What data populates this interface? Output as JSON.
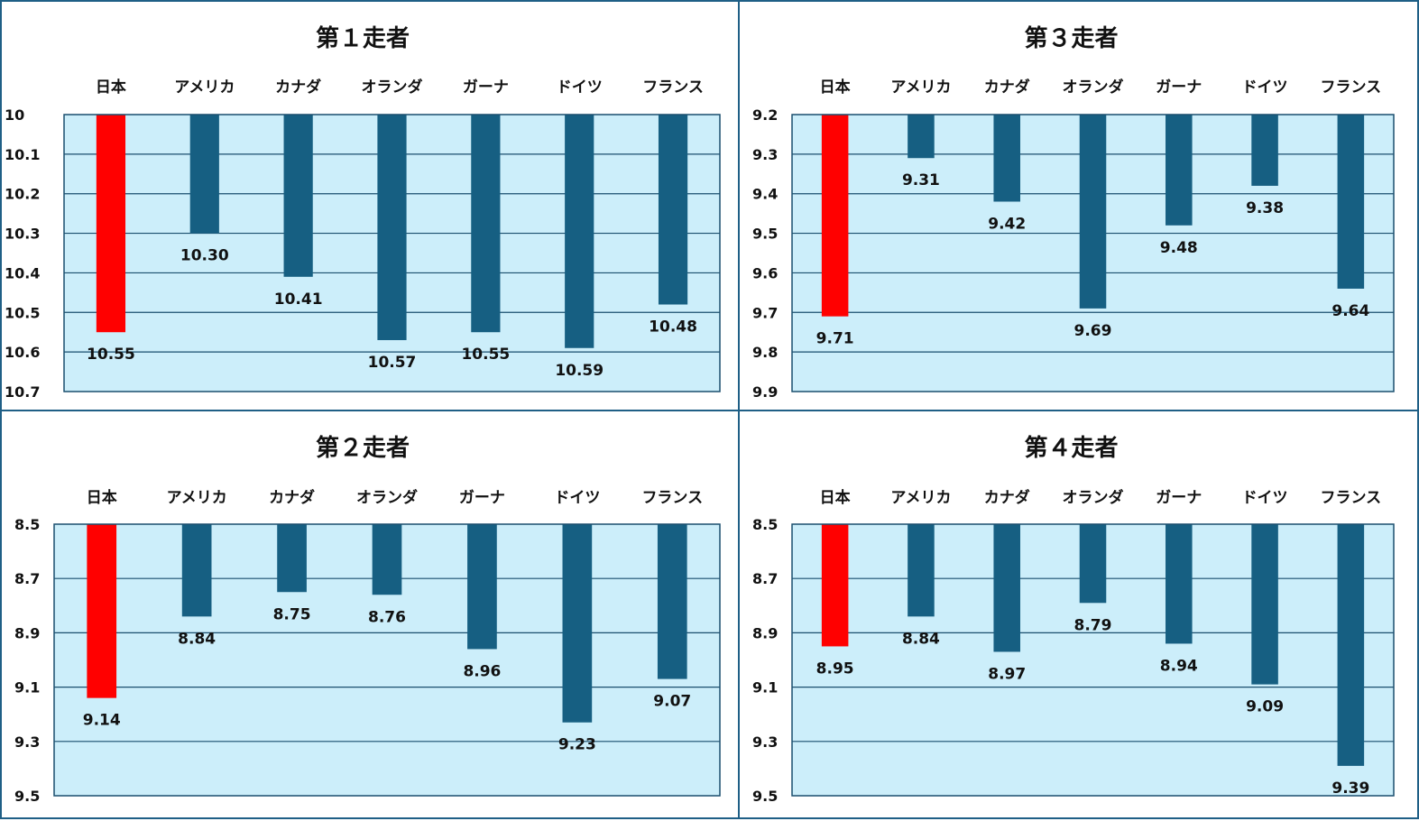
{
  "colors": {
    "plot_bg": "#cceefa",
    "bar": "#165f82",
    "bar_highlight": "#ff0000",
    "grid": "#1a4f6e",
    "border": "#1f5f86"
  },
  "chart_data": [
    {
      "type": "bar",
      "orientation": "inverted-vertical",
      "title": "第１走者",
      "categories": [
        "日本",
        "アメリカ",
        "カナダ",
        "オランダ",
        "ガーナ",
        "ドイツ",
        "フランス"
      ],
      "values": [
        10.55,
        10.3,
        10.41,
        10.57,
        10.55,
        10.59,
        10.48
      ],
      "value_labels": [
        "10.55",
        "10.30",
        "10.41",
        "10.57",
        "10.55",
        "10.59",
        "10.48"
      ],
      "ticks": [
        "10",
        "10.1",
        "10.2",
        "10.3",
        "10.4",
        "10.5",
        "10.6",
        "10.7"
      ],
      "ylim": [
        10,
        10.7
      ],
      "highlight": "日本",
      "grid": true,
      "xlabel": "",
      "ylabel": ""
    },
    {
      "type": "bar",
      "orientation": "inverted-vertical",
      "title": "第３走者",
      "categories": [
        "日本",
        "アメリカ",
        "カナダ",
        "オランダ",
        "ガーナ",
        "ドイツ",
        "フランス"
      ],
      "values": [
        9.71,
        9.31,
        9.42,
        9.69,
        9.48,
        9.38,
        9.64
      ],
      "value_labels": [
        "9.71",
        "9.31",
        "9.42",
        "9.69",
        "9.48",
        "9.38",
        "9.64"
      ],
      "ticks": [
        "9.2",
        "9.3",
        "9.4",
        "9.5",
        "9.6",
        "9.7",
        "9.8",
        "9.9"
      ],
      "ylim": [
        9.2,
        9.9
      ],
      "highlight": "日本",
      "grid": true,
      "xlabel": "",
      "ylabel": ""
    },
    {
      "type": "bar",
      "orientation": "inverted-vertical",
      "title": "第２走者",
      "categories": [
        "日本",
        "アメリカ",
        "カナダ",
        "オランダ",
        "ガーナ",
        "ドイツ",
        "フランス"
      ],
      "values": [
        9.14,
        8.84,
        8.75,
        8.76,
        8.96,
        9.23,
        9.07
      ],
      "value_labels": [
        "9.14",
        "8.84",
        "8.75",
        "8.76",
        "8.96",
        "9.23",
        "9.07"
      ],
      "ticks": [
        "8.5",
        "8.7",
        "8.9",
        "9.1",
        "9.3",
        "9.5"
      ],
      "ylim": [
        8.5,
        9.5
      ],
      "highlight": "日本",
      "grid": true,
      "xlabel": "",
      "ylabel": ""
    },
    {
      "type": "bar",
      "orientation": "inverted-vertical",
      "title": "第４走者",
      "categories": [
        "日本",
        "アメリカ",
        "カナダ",
        "オランダ",
        "ガーナ",
        "ドイツ",
        "フランス"
      ],
      "values": [
        8.95,
        8.84,
        8.97,
        8.79,
        8.94,
        9.09,
        9.39
      ],
      "value_labels": [
        "8.95",
        "8.84",
        "8.97",
        "8.79",
        "8.94",
        "9.09",
        "9.39"
      ],
      "ticks": [
        "8.5",
        "8.7",
        "8.9",
        "9.1",
        "9.3",
        "9.5"
      ],
      "ylim": [
        8.5,
        9.5
      ],
      "highlight": "日本",
      "grid": true,
      "xlabel": "",
      "ylabel": ""
    }
  ]
}
